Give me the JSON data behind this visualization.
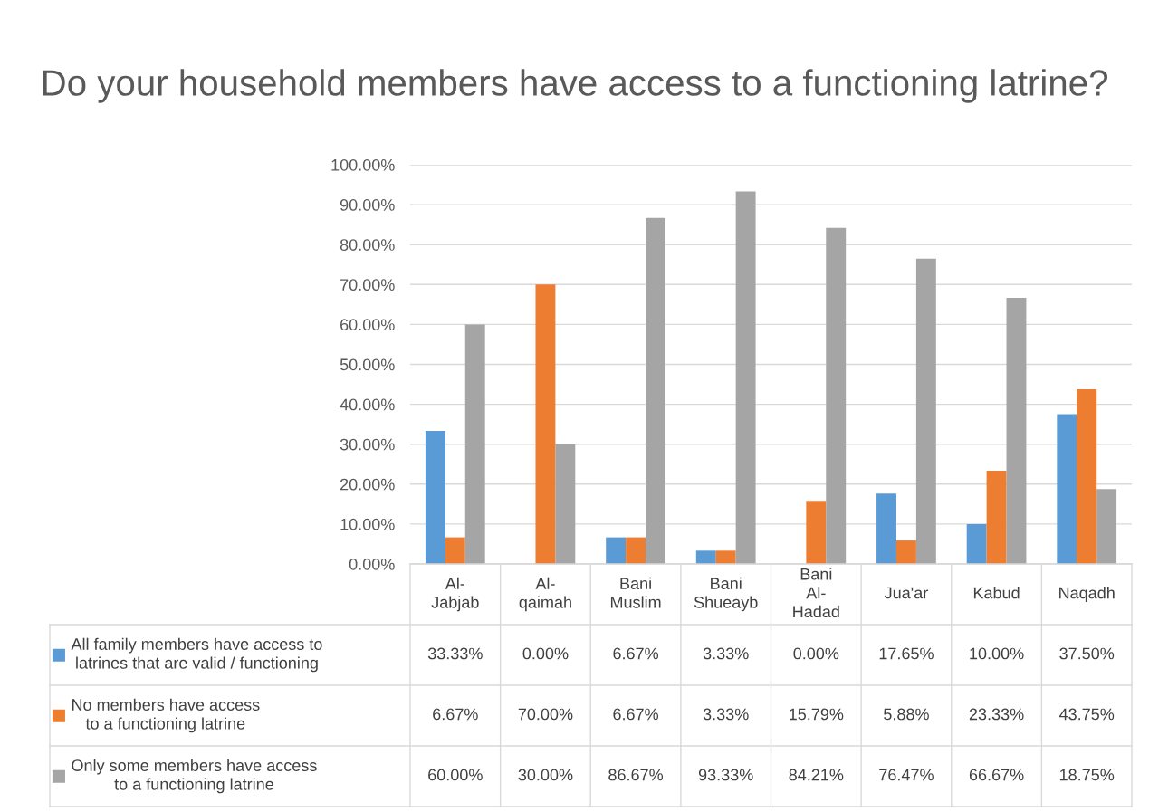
{
  "chart_data": {
    "type": "bar",
    "title": "Do your household members have access to a functioning latrine?",
    "categories": [
      "Al-Jabjab",
      "Al-qaimah",
      "Bani Muslim",
      "Bani Shueayb",
      "Bani Al-Hadad",
      "Jua'ar",
      "Kabud",
      "Naqadh"
    ],
    "series": [
      {
        "name": "All family members have access to latrines that are valid / functioning",
        "color": "#5b9bd5",
        "values": [
          33.33,
          0.0,
          6.67,
          3.33,
          0.0,
          17.65,
          10.0,
          37.5
        ],
        "value_labels": [
          "33.33%",
          "0.00%",
          "6.67%",
          "3.33%",
          "0.00%",
          "17.65%",
          "10.00%",
          "37.50%"
        ]
      },
      {
        "name": "No members have access to a functioning latrine",
        "color": "#ed7d31",
        "values": [
          6.67,
          70.0,
          6.67,
          3.33,
          15.79,
          5.88,
          23.33,
          43.75
        ],
        "value_labels": [
          "6.67%",
          "70.00%",
          "6.67%",
          "3.33%",
          "15.79%",
          "5.88%",
          "23.33%",
          "43.75%"
        ]
      },
      {
        "name": "Only some members have access to a functioning latrine",
        "color": "#a5a5a5",
        "values": [
          60.0,
          30.0,
          86.67,
          93.33,
          84.21,
          76.47,
          66.67,
          18.75
        ],
        "value_labels": [
          "60.00%",
          "30.00%",
          "86.67%",
          "93.33%",
          "84.21%",
          "76.47%",
          "66.67%",
          "18.75%"
        ]
      }
    ],
    "ylim": [
      0,
      100
    ],
    "yticks": [
      {
        "value": 0,
        "label": "0.00%"
      },
      {
        "value": 10,
        "label": "10.00%"
      },
      {
        "value": 20,
        "label": "20.00%"
      },
      {
        "value": 30,
        "label": "30.00%"
      },
      {
        "value": 40,
        "label": "40.00%"
      },
      {
        "value": 50,
        "label": "50.00%"
      },
      {
        "value": 60,
        "label": "60.00%"
      },
      {
        "value": 70,
        "label": "70.00%"
      },
      {
        "value": 80,
        "label": "80.00%"
      },
      {
        "value": 90,
        "label": "90.00%"
      },
      {
        "value": 100,
        "label": "100.00%"
      }
    ],
    "grid": "y",
    "legend": "bottom"
  }
}
